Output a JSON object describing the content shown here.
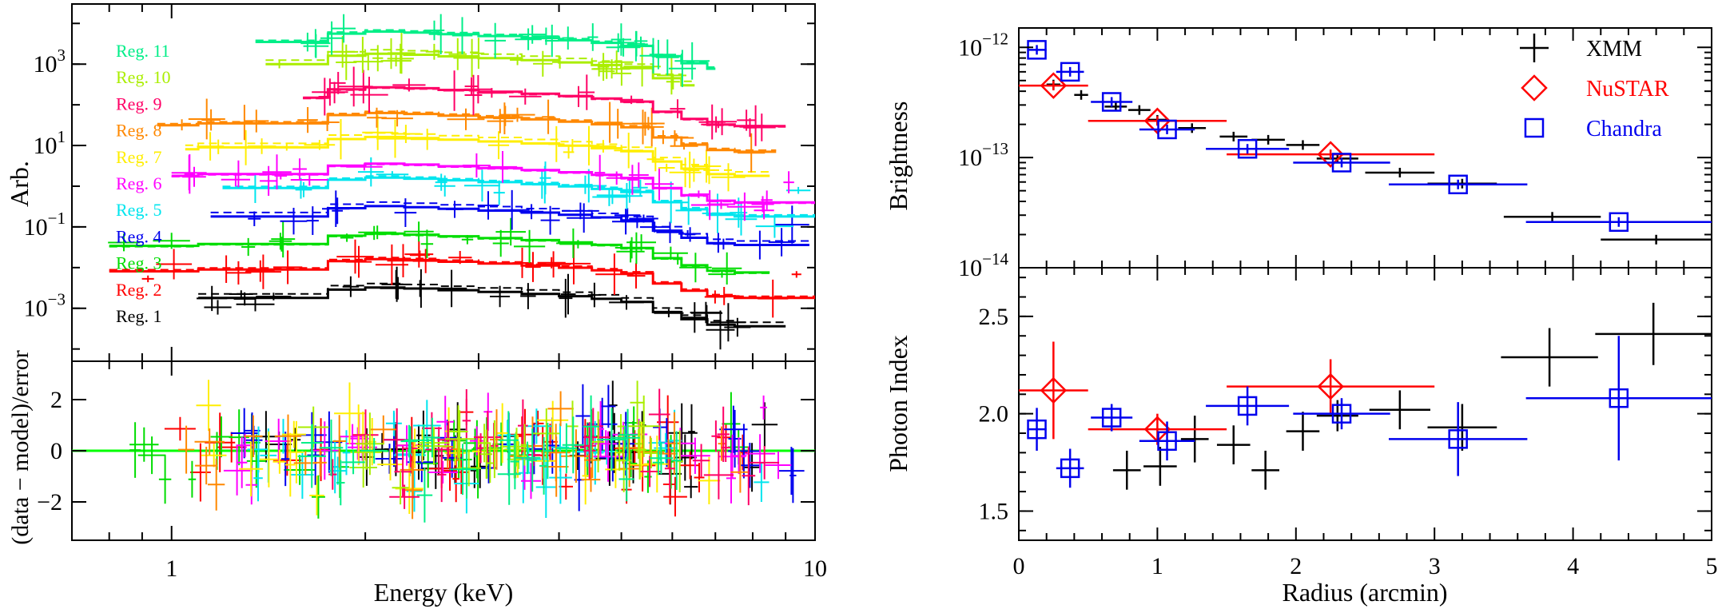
{
  "chart_data": [
    {
      "type": "line",
      "subtype": "step",
      "panel": "spectra",
      "ylabel": "Arb.",
      "xscale": "log",
      "yscale": "log",
      "xlim": [
        0.7,
        10
      ],
      "ylim": [
        5e-05,
        30000
      ],
      "yticks": [
        {
          "v": 0.001,
          "base": "10",
          "exp": "−3"
        },
        {
          "v": 0.1,
          "base": "10",
          "exp": "−1"
        },
        {
          "v": 10,
          "base": "10",
          "exp": "1"
        },
        {
          "v": 1000,
          "base": "10",
          "exp": "3"
        }
      ],
      "model_energy_bins": [
        1.1,
        1.4,
        1.75,
        2.0,
        2.3,
        2.6,
        3.0,
        3.5,
        4.0,
        4.5,
        5.0,
        5.6,
        6.2,
        6.8,
        7.5,
        8.5,
        9.0
      ],
      "model_shape": [
        1.0,
        1.0,
        1.6,
        1.8,
        1.7,
        1.55,
        1.4,
        1.25,
        1.1,
        0.95,
        0.8,
        0.45,
        0.3,
        0.22,
        0.2,
        0.2
      ],
      "series": [
        {
          "name": "Reg. 1",
          "color": "#000000",
          "norm": 0.0018,
          "emin": 1.1,
          "emax": 9.0
        },
        {
          "name": "Reg. 2",
          "color": "#ff0000",
          "norm": 0.009,
          "emin": 0.8,
          "emax": 10.0
        },
        {
          "name": "Reg. 3",
          "color": "#00dd00",
          "norm": 0.038,
          "emin": 0.8,
          "emax": 8.5
        },
        {
          "name": "Reg. 4",
          "color": "#0000ee",
          "norm": 0.18,
          "emin": 1.15,
          "emax": 9.8
        },
        {
          "name": "Reg. 5",
          "color": "#00e5ee",
          "norm": 0.9,
          "emin": 1.2,
          "emax": 10.0
        },
        {
          "name": "Reg. 6",
          "color": "#ff00ff",
          "norm": 2.0,
          "emin": 1.0,
          "emax": 10.0
        },
        {
          "name": "Reg. 7",
          "color": "#ffee00",
          "norm": 9.0,
          "emin": 1.05,
          "emax": 8.5
        },
        {
          "name": "Reg. 8",
          "color": "#ff8800",
          "norm": 35,
          "emin": 0.95,
          "emax": 8.7
        },
        {
          "name": "Reg. 9",
          "color": "#ff0066",
          "norm": 150,
          "emin": 1.6,
          "emax": 9.0
        },
        {
          "name": "Reg. 10",
          "color": "#aaee00",
          "norm": 1000,
          "emin": 1.4,
          "emax": 6.5
        },
        {
          "name": "Reg. 11",
          "color": "#00ee88",
          "norm": 3500,
          "emin": 1.35,
          "emax": 7.0
        }
      ]
    },
    {
      "type": "line",
      "panel": "residuals",
      "ylabel": "(data − model)/error",
      "xlabel": "Energy (keV)",
      "xscale": "log",
      "xlim": [
        0.7,
        10
      ],
      "ylim": [
        -3.5,
        3.5
      ],
      "yticks": [
        -2,
        0,
        2
      ],
      "xticks": [
        1,
        10
      ],
      "zero_line_color": "#00ff00",
      "colors": [
        "#000000",
        "#ff0000",
        "#00dd00",
        "#0000ee",
        "#00e5ee",
        "#ff00ff",
        "#ffee00",
        "#ff8800",
        "#ff0066",
        "#aaee00",
        "#00ee88"
      ]
    },
    {
      "type": "scatter",
      "panel": "brightness",
      "ylabel": "Brightness",
      "yscale": "log",
      "xlim": [
        0,
        5
      ],
      "ylim": [
        1e-14,
        1.5e-12
      ],
      "yticks": [
        {
          "v": 1e-14,
          "base": "10",
          "exp": "−14"
        },
        {
          "v": 1e-13,
          "base": "10",
          "exp": "−13"
        },
        {
          "v": 1e-12,
          "base": "10",
          "exp": "−12"
        }
      ],
      "legend": [
        {
          "name": "XMM",
          "color": "#000000",
          "marker": "cross"
        },
        {
          "name": "NuSTAR",
          "color": "#ff0000",
          "marker": "diamond"
        },
        {
          "name": "Chandra",
          "color": "#0000ee",
          "marker": "square"
        }
      ],
      "series": [
        {
          "name": "XMM",
          "color": "#000000",
          "marker": "none",
          "points": [
            {
              "x": 0.25,
              "y": 4.6e-13,
              "xerr": 0.05
            },
            {
              "x": 0.45,
              "y": 3.7e-13,
              "xerr": 0.05
            },
            {
              "x": 0.7,
              "y": 2.9e-13,
              "xerr": 0.08
            },
            {
              "x": 0.87,
              "y": 2.7e-13,
              "xerr": 0.08
            },
            {
              "x": 1.0,
              "y": 2.2e-13,
              "xerr": 0.08
            },
            {
              "x": 1.25,
              "y": 1.85e-13,
              "xerr": 0.1
            },
            {
              "x": 1.55,
              "y": 1.55e-13,
              "xerr": 0.1
            },
            {
              "x": 1.8,
              "y": 1.45e-13,
              "xerr": 0.12
            },
            {
              "x": 2.05,
              "y": 1.3e-13,
              "xerr": 0.12
            },
            {
              "x": 2.3,
              "y": 9.8e-14,
              "xerr": 0.15
            },
            {
              "x": 2.75,
              "y": 7.3e-14,
              "xerr": 0.25
            },
            {
              "x": 3.2,
              "y": 5.8e-14,
              "xerr": 0.25
            },
            {
              "x": 3.85,
              "y": 2.9e-14,
              "xerr": 0.35
            },
            {
              "x": 4.6,
              "y": 1.8e-14,
              "xerr": 0.4
            }
          ]
        },
        {
          "name": "NuSTAR",
          "color": "#ff0000",
          "marker": "diamond",
          "points": [
            {
              "x": 0.25,
              "y": 4.5e-13,
              "xerr": 0.25
            },
            {
              "x": 1.0,
              "y": 2.15e-13,
              "xerr": 0.5
            },
            {
              "x": 2.25,
              "y": 1.07e-13,
              "xerr": 0.75
            }
          ]
        },
        {
          "name": "Chandra",
          "color": "#0000ee",
          "marker": "square",
          "points": [
            {
              "x": 0.13,
              "y": 9.5e-13,
              "xerr": 0.07
            },
            {
              "x": 0.37,
              "y": 6e-13,
              "xerr": 0.1
            },
            {
              "x": 0.67,
              "y": 3.2e-13,
              "xerr": 0.15
            },
            {
              "x": 1.07,
              "y": 1.8e-13,
              "xerr": 0.2
            },
            {
              "x": 1.65,
              "y": 1.2e-13,
              "xerr": 0.3
            },
            {
              "x": 2.33,
              "y": 9e-14,
              "xerr": 0.35
            },
            {
              "x": 3.17,
              "y": 5.7e-14,
              "xerr": 0.5
            },
            {
              "x": 4.33,
              "y": 2.6e-14,
              "xerr": 0.67
            }
          ]
        }
      ]
    },
    {
      "type": "scatter",
      "panel": "photon-index",
      "ylabel": "Photon Index",
      "xlabel": "Radius (arcmin)",
      "xlim": [
        0,
        5
      ],
      "ylim": [
        1.35,
        2.75
      ],
      "yticks": [
        1.5,
        2.0,
        2.5
      ],
      "xticks": [
        0,
        1,
        2,
        3,
        4,
        5
      ],
      "series": [
        {
          "name": "XMM",
          "color": "#000000",
          "marker": "none",
          "points": [
            {
              "x": 0.78,
              "y": 1.71,
              "xerr": 0.1,
              "yerr": 0.1
            },
            {
              "x": 1.02,
              "y": 1.73,
              "xerr": 0.12,
              "yerr": 0.1
            },
            {
              "x": 1.27,
              "y": 1.87,
              "xerr": 0.1,
              "yerr": 0.12
            },
            {
              "x": 1.55,
              "y": 1.84,
              "xerr": 0.12,
              "yerr": 0.1
            },
            {
              "x": 1.78,
              "y": 1.71,
              "xerr": 0.1,
              "yerr": 0.1
            },
            {
              "x": 2.05,
              "y": 1.91,
              "xerr": 0.12,
              "yerr": 0.1
            },
            {
              "x": 2.3,
              "y": 1.99,
              "xerr": 0.15,
              "yerr": 0.08
            },
            {
              "x": 2.75,
              "y": 2.02,
              "xerr": 0.22,
              "yerr": 0.1
            },
            {
              "x": 3.2,
              "y": 1.93,
              "xerr": 0.25,
              "yerr": 0.12
            },
            {
              "x": 3.83,
              "y": 2.29,
              "xerr": 0.35,
              "yerr": 0.15
            },
            {
              "x": 4.58,
              "y": 2.41,
              "xerr": 0.42,
              "yerr": 0.16
            }
          ]
        },
        {
          "name": "NuSTAR",
          "color": "#ff0000",
          "marker": "diamond",
          "points": [
            {
              "x": 0.25,
              "y": 2.12,
              "xerr": 0.25,
              "yerr": 0.25
            },
            {
              "x": 1.0,
              "y": 1.92,
              "xerr": 0.5,
              "yerr": 0.08
            },
            {
              "x": 2.25,
              "y": 2.14,
              "xerr": 0.75,
              "yerr": 0.14
            }
          ]
        },
        {
          "name": "Chandra",
          "color": "#0000ee",
          "marker": "square",
          "points": [
            {
              "x": 0.13,
              "y": 1.92,
              "xerr": 0.07,
              "yerr": 0.11
            },
            {
              "x": 0.37,
              "y": 1.72,
              "xerr": 0.1,
              "yerr": 0.1
            },
            {
              "x": 0.67,
              "y": 1.98,
              "xerr": 0.15,
              "yerr": 0.07
            },
            {
              "x": 1.07,
              "y": 1.86,
              "xerr": 0.2,
              "yerr": 0.1
            },
            {
              "x": 1.65,
              "y": 2.04,
              "xerr": 0.3,
              "yerr": 0.1
            },
            {
              "x": 2.33,
              "y": 2.0,
              "xerr": 0.35,
              "yerr": 0.08
            },
            {
              "x": 3.17,
              "y": 1.87,
              "xerr": 0.5,
              "yerr": 0.19
            },
            {
              "x": 4.33,
              "y": 2.08,
              "xerr": 0.67,
              "yerr": 0.32
            }
          ]
        }
      ]
    }
  ],
  "labels": {
    "energy_tick_1": "1",
    "energy_tick_10": "10"
  }
}
